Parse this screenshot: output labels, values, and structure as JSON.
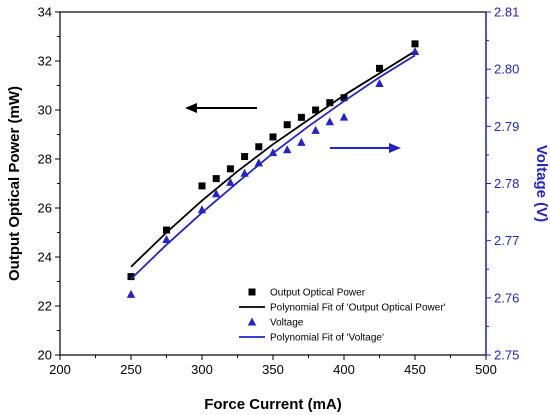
{
  "chart_data": {
    "type": "scatter",
    "xlabel": "Force Current (mA)",
    "ylabel_left": "Output Optical Power (mW)",
    "ylabel_right": "Voltage (V)",
    "xlim": [
      200,
      500
    ],
    "ylim_left": [
      20,
      34
    ],
    "ylim_right": [
      2.75,
      2.81
    ],
    "x_ticks": [
      200,
      250,
      300,
      350,
      400,
      450,
      500
    ],
    "y_left_ticks": [
      20,
      22,
      24,
      26,
      28,
      30,
      32,
      34
    ],
    "y_right_ticks": [
      2.75,
      2.76,
      2.77,
      2.78,
      2.79,
      2.8,
      2.81
    ],
    "grid": false,
    "legend_position": "bottom-right",
    "colors": {
      "power": "#000000",
      "voltage": "#2323c8",
      "right_axis": "#2323c8"
    },
    "series": [
      {
        "name": "Output Optical Power",
        "axis": "left",
        "marker": "square",
        "x": [
          250,
          275,
          300,
          310,
          320,
          330,
          340,
          350,
          360,
          370,
          380,
          390,
          400,
          425,
          450
        ],
        "y": [
          23.2,
          25.1,
          26.9,
          27.2,
          27.6,
          28.1,
          28.5,
          28.9,
          29.4,
          29.7,
          30.0,
          30.3,
          30.5,
          31.7,
          32.7
        ]
      },
      {
        "name": "Polynomial Fit of 'Output Optical Power'",
        "axis": "left",
        "line": true,
        "x": [
          250,
          275,
          300,
          325,
          350,
          375,
          400,
          425,
          450
        ],
        "y": [
          23.6,
          25.0,
          26.3,
          27.5,
          28.6,
          29.6,
          30.6,
          31.5,
          32.4
        ]
      },
      {
        "name": "Voltage",
        "axis": "right",
        "marker": "triangle",
        "x": [
          250,
          275,
          300,
          310,
          320,
          330,
          340,
          350,
          360,
          370,
          380,
          390,
          400,
          425,
          450
        ],
        "y": [
          2.7606,
          2.7702,
          2.7754,
          2.7782,
          2.7802,
          2.7818,
          2.7836,
          2.7854,
          2.7859,
          2.7872,
          2.7893,
          2.7908,
          2.7916,
          2.7975,
          2.8031
        ]
      },
      {
        "name": "Polynomial Fit of 'Voltage'",
        "axis": "right",
        "line": true,
        "x": [
          250,
          275,
          300,
          325,
          350,
          375,
          400,
          425,
          450
        ],
        "y": [
          2.7633,
          2.7693,
          2.7749,
          2.7802,
          2.7853,
          2.79,
          2.7944,
          2.7986,
          2.8024
        ]
      }
    ],
    "annotations": [
      {
        "type": "arrow",
        "direction": "left",
        "target_axis": "left"
      },
      {
        "type": "arrow",
        "direction": "right",
        "target_axis": "right"
      }
    ]
  }
}
